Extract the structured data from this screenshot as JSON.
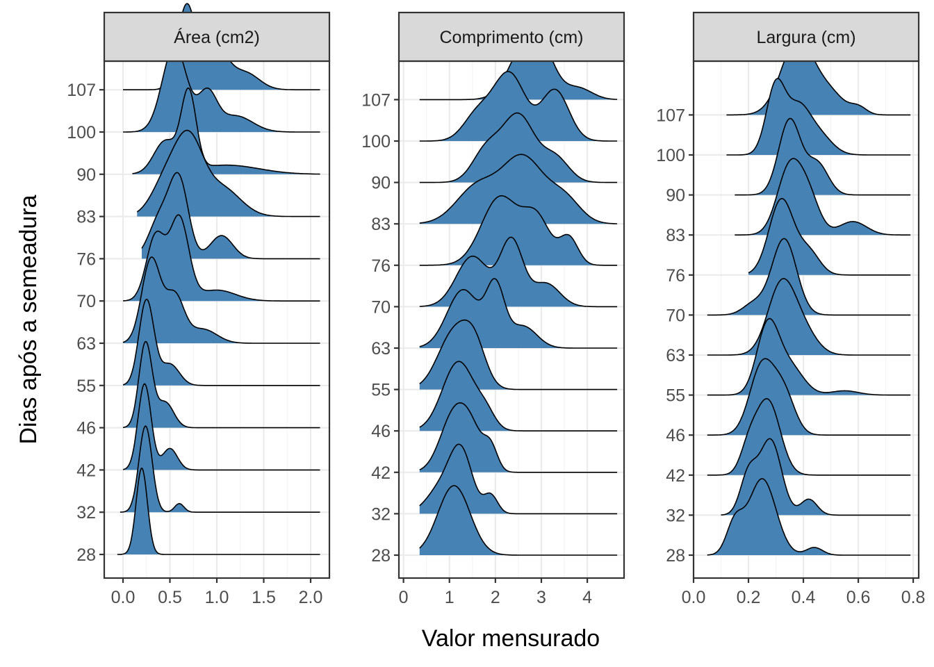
{
  "chart_data": {
    "type": "ridgeline",
    "xlabel": "Valor mensurado",
    "ylabel": "Dias após a semeadura",
    "categories": [
      "28",
      "32",
      "42",
      "46",
      "55",
      "63",
      "70",
      "76",
      "83",
      "90",
      "100",
      "107"
    ],
    "fill_color": "#4682b4",
    "grid": true,
    "panels": [
      {
        "title": "Área (cm2)",
        "xlim": [
          -0.2,
          2.2
        ],
        "xticks": [
          0.0,
          0.5,
          1.0,
          1.5,
          2.0
        ],
        "xtick_labels": [
          "0.0",
          "0.5",
          "1.0",
          "1.5",
          "2.0"
        ],
        "series": [
          {
            "day": "28",
            "range": [
              -0.06,
              2.1
            ],
            "peaks": [
              [
                0.2,
                0.06,
                1.0
              ]
            ]
          },
          {
            "day": "32",
            "range": [
              -0.03,
              2.1
            ],
            "peaks": [
              [
                0.24,
                0.07,
                1.0
              ],
              [
                0.6,
                0.05,
                0.1
              ]
            ]
          },
          {
            "day": "42",
            "range": [
              0.0,
              2.1
            ],
            "peaks": [
              [
                0.23,
                0.07,
                1.0
              ],
              [
                0.5,
                0.08,
                0.25
              ]
            ]
          },
          {
            "day": "46",
            "range": [
              0.0,
              2.1
            ],
            "peaks": [
              [
                0.24,
                0.07,
                1.0
              ],
              [
                0.45,
                0.09,
                0.3
              ]
            ]
          },
          {
            "day": "55",
            "range": [
              0.0,
              2.1
            ],
            "peaks": [
              [
                0.25,
                0.08,
                1.0
              ],
              [
                0.5,
                0.1,
                0.25
              ]
            ]
          },
          {
            "day": "63",
            "range": [
              0.0,
              2.1
            ],
            "peaks": [
              [
                0.3,
                0.1,
                0.9
              ],
              [
                0.55,
                0.1,
                0.5
              ],
              [
                0.85,
                0.15,
                0.15
              ]
            ]
          },
          {
            "day": "70",
            "range": [
              0.0,
              2.1
            ],
            "peaks": [
              [
                0.35,
                0.1,
                0.6
              ],
              [
                0.6,
                0.1,
                0.75
              ],
              [
                1.0,
                0.2,
                0.1
              ]
            ]
          },
          {
            "day": "76",
            "range": [
              0.2,
              2.1
            ],
            "peaks": [
              [
                0.4,
                0.12,
                0.45
              ],
              [
                0.6,
                0.1,
                0.8
              ],
              [
                1.05,
                0.12,
                0.25
              ]
            ]
          },
          {
            "day": "83",
            "range": [
              0.15,
              2.1
            ],
            "peaks": [
              [
                0.45,
                0.15,
                0.35
              ],
              [
                0.7,
                0.15,
                0.75
              ],
              [
                1.05,
                0.2,
                0.3
              ]
            ]
          },
          {
            "day": "90",
            "range": [
              0.1,
              2.1
            ],
            "peaks": [
              [
                0.45,
                0.12,
                0.35
              ],
              [
                0.7,
                0.08,
                0.85
              ],
              [
                1.1,
                0.35,
                0.1
              ]
            ]
          },
          {
            "day": "100",
            "range": [
              0.0,
              2.1
            ],
            "peaks": [
              [
                0.55,
                0.13,
                0.8
              ],
              [
                0.9,
                0.1,
                0.35
              ],
              [
                1.2,
                0.18,
                0.15
              ]
            ]
          },
          {
            "day": "107",
            "range": [
              0.0,
              2.1
            ],
            "peaks": [
              [
                0.68,
                0.1,
                1.0
              ],
              [
                1.0,
                0.12,
                0.45
              ],
              [
                1.3,
                0.15,
                0.2
              ]
            ]
          }
        ]
      },
      {
        "title": "Comprimento (cm)",
        "xlim": [
          -0.1,
          4.8
        ],
        "xticks": [
          0,
          1,
          2,
          3,
          4
        ],
        "xtick_labels": [
          "0",
          "1",
          "2",
          "3",
          "4"
        ],
        "series": [
          {
            "day": "28",
            "range": [
              0.35,
              4.65
            ],
            "peaks": [
              [
                1.1,
                0.35,
                1.0
              ]
            ]
          },
          {
            "day": "32",
            "range": [
              0.35,
              4.65
            ],
            "peaks": [
              [
                1.25,
                0.25,
                1.0
              ],
              [
                0.8,
                0.3,
                0.4
              ],
              [
                1.9,
                0.15,
                0.3
              ]
            ]
          },
          {
            "day": "42",
            "range": [
              0.35,
              4.65
            ],
            "peaks": [
              [
                1.1,
                0.3,
                0.9
              ],
              [
                1.5,
                0.25,
                0.5
              ],
              [
                1.9,
                0.15,
                0.35
              ]
            ]
          },
          {
            "day": "46",
            "range": [
              0.35,
              4.65
            ],
            "peaks": [
              [
                1.2,
                0.35,
                1.0
              ],
              [
                1.8,
                0.2,
                0.2
              ]
            ]
          },
          {
            "day": "55",
            "range": [
              0.35,
              4.65
            ],
            "peaks": [
              [
                1.1,
                0.35,
                0.95
              ],
              [
                1.55,
                0.25,
                0.6
              ]
            ]
          },
          {
            "day": "63",
            "range": [
              0.35,
              4.65
            ],
            "peaks": [
              [
                1.3,
                0.35,
                0.8
              ],
              [
                2.0,
                0.2,
                0.8
              ],
              [
                2.6,
                0.3,
                0.3
              ]
            ]
          },
          {
            "day": "70",
            "range": [
              0.35,
              4.65
            ],
            "peaks": [
              [
                1.5,
                0.35,
                0.65
              ],
              [
                2.35,
                0.25,
                0.85
              ],
              [
                3.1,
                0.3,
                0.3
              ]
            ]
          },
          {
            "day": "76",
            "range": [
              0.35,
              4.65
            ],
            "peaks": [
              [
                2.1,
                0.4,
                0.75
              ],
              [
                2.9,
                0.3,
                0.5
              ],
              [
                3.6,
                0.2,
                0.3
              ]
            ]
          },
          {
            "day": "83",
            "range": [
              0.35,
              4.65
            ],
            "peaks": [
              [
                1.6,
                0.45,
                0.45
              ],
              [
                2.6,
                0.45,
                0.8
              ],
              [
                3.5,
                0.35,
                0.3
              ]
            ]
          },
          {
            "day": "90",
            "range": [
              0.35,
              4.65
            ],
            "peaks": [
              [
                1.8,
                0.3,
                0.45
              ],
              [
                2.5,
                0.35,
                0.95
              ],
              [
                3.3,
                0.3,
                0.35
              ]
            ]
          },
          {
            "day": "100",
            "range": [
              0.35,
              4.65
            ],
            "peaks": [
              [
                2.3,
                0.35,
                0.8
              ],
              [
                3.3,
                0.3,
                0.6
              ],
              [
                1.6,
                0.3,
                0.3
              ]
            ]
          },
          {
            "day": "107",
            "range": [
              0.35,
              4.65
            ],
            "peaks": [
              [
                2.6,
                0.35,
                0.75
              ],
              [
                3.0,
                0.3,
                0.7
              ],
              [
                3.8,
                0.3,
                0.2
              ]
            ]
          }
        ]
      },
      {
        "title": "Largura (cm)",
        "xlim": [
          0.0,
          0.82
        ],
        "xticks": [
          0.0,
          0.2,
          0.4,
          0.6,
          0.8
        ],
        "xtick_labels": [
          "0.0",
          "0.2",
          "0.4",
          "0.6",
          "0.8"
        ],
        "series": [
          {
            "day": "28",
            "range": [
              0.05,
              0.79
            ],
            "peaks": [
              [
                0.25,
                0.05,
                1.0
              ],
              [
                0.15,
                0.03,
                0.4
              ],
              [
                0.44,
                0.03,
                0.1
              ]
            ]
          },
          {
            "day": "32",
            "range": [
              0.1,
              0.79
            ],
            "peaks": [
              [
                0.28,
                0.04,
                0.95
              ],
              [
                0.2,
                0.03,
                0.5
              ],
              [
                0.42,
                0.03,
                0.2
              ]
            ]
          },
          {
            "day": "42",
            "range": [
              0.05,
              0.79
            ],
            "peaks": [
              [
                0.27,
                0.045,
                1.0
              ],
              [
                0.2,
                0.03,
                0.3
              ]
            ]
          },
          {
            "day": "46",
            "range": [
              0.05,
              0.79
            ],
            "peaks": [
              [
                0.25,
                0.045,
                0.9
              ],
              [
                0.33,
                0.04,
                0.5
              ]
            ]
          },
          {
            "day": "55",
            "range": [
              0.05,
              0.79
            ],
            "peaks": [
              [
                0.27,
                0.04,
                0.95
              ],
              [
                0.35,
                0.05,
                0.4
              ],
              [
                0.55,
                0.05,
                0.06
              ]
            ]
          },
          {
            "day": "63",
            "range": [
              0.05,
              0.79
            ],
            "peaks": [
              [
                0.32,
                0.05,
                0.95
              ],
              [
                0.4,
                0.05,
                0.3
              ]
            ]
          },
          {
            "day": "70",
            "range": [
              0.05,
              0.79
            ],
            "peaks": [
              [
                0.33,
                0.045,
                1.0
              ],
              [
                0.22,
                0.04,
                0.15
              ]
            ]
          },
          {
            "day": "76",
            "range": [
              0.2,
              0.79
            ],
            "peaks": [
              [
                0.32,
                0.045,
                1.0
              ],
              [
                0.42,
                0.04,
                0.3
              ]
            ]
          },
          {
            "day": "83",
            "range": [
              0.15,
              0.79
            ],
            "peaks": [
              [
                0.35,
                0.045,
                1.0
              ],
              [
                0.42,
                0.04,
                0.5
              ],
              [
                0.58,
                0.05,
                0.2
              ]
            ]
          },
          {
            "day": "90",
            "range": [
              0.15,
              0.79
            ],
            "peaks": [
              [
                0.35,
                0.04,
                0.95
              ],
              [
                0.45,
                0.04,
                0.4
              ]
            ]
          },
          {
            "day": "100",
            "range": [
              0.12,
              0.79
            ],
            "peaks": [
              [
                0.3,
                0.035,
                0.95
              ],
              [
                0.38,
                0.04,
                0.55
              ],
              [
                0.45,
                0.05,
                0.3
              ]
            ]
          },
          {
            "day": "107",
            "range": [
              0.12,
              0.79
            ],
            "peaks": [
              [
                0.38,
                0.06,
                1.0
              ],
              [
                0.5,
                0.05,
                0.25
              ],
              [
                0.6,
                0.03,
                0.1
              ]
            ]
          }
        ]
      }
    ]
  }
}
